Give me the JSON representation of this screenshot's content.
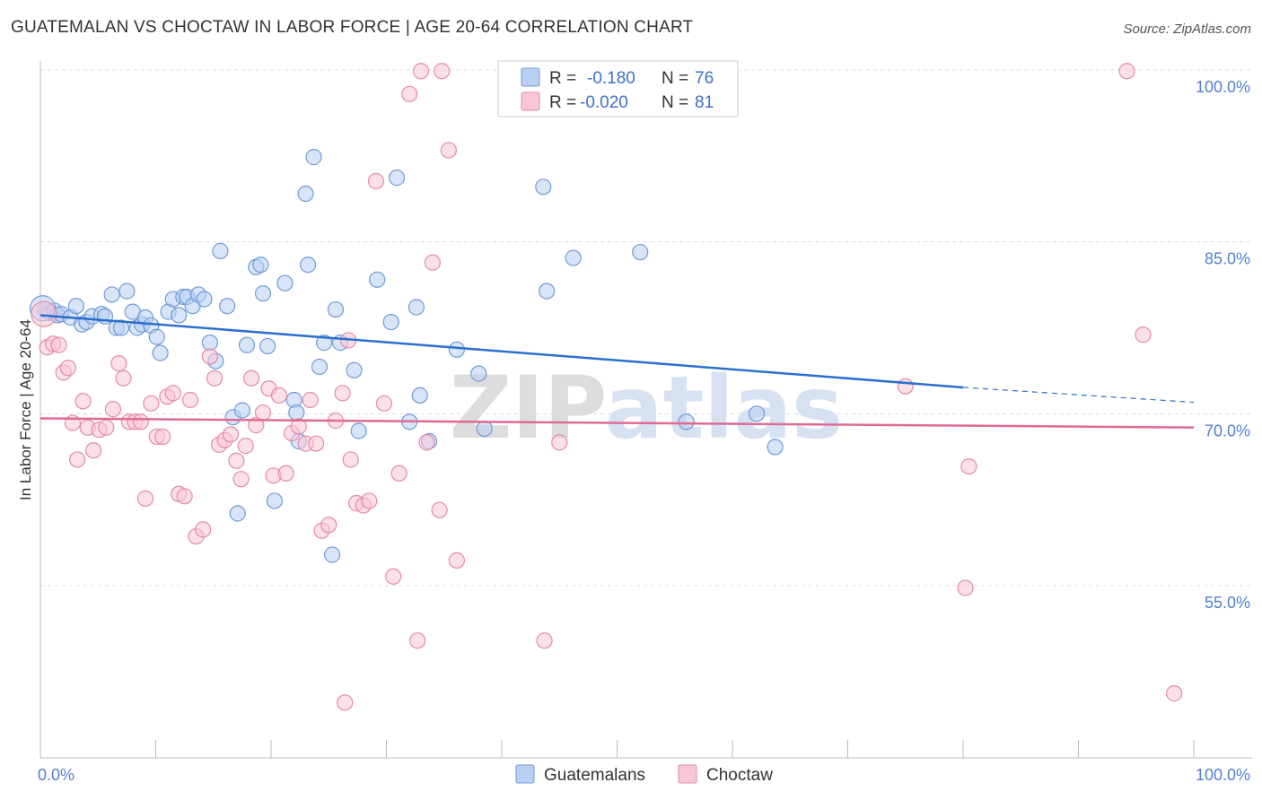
{
  "title": "GUATEMALAN VS CHOCTAW IN LABOR FORCE | AGE 20-64 CORRELATION CHART",
  "source": "Source: ZipAtlas.com",
  "watermark": "ZIPatlas",
  "chart_data": {
    "type": "scatter",
    "xlabel": "",
    "ylabel": "In Labor Force | Age 20-64",
    "xlim": [
      0,
      100
    ],
    "ylim": [
      40,
      102
    ],
    "x_tick_labels": [
      "0.0%",
      "100.0%"
    ],
    "y_ticks": [
      55,
      70,
      85,
      100
    ],
    "y_tick_labels": [
      "55.0%",
      "70.0%",
      "85.0%",
      "100.0%"
    ],
    "grid": "horizontal-dashed",
    "legend_position": "top-center",
    "stats": [
      {
        "r_label": "R =",
        "r_value": "-0.180",
        "n_label": "N =",
        "n_value": "76"
      },
      {
        "r_label": "R =",
        "r_value": "-0.020",
        "n_label": "N =",
        "n_value": "81"
      }
    ],
    "bottom_legend": [
      "Guatemalans",
      "Choctaw"
    ],
    "colors": {
      "guatemalan_fill": "#b8d0f2",
      "guatemalan_stroke": "#6f9ad8",
      "guatemalan_line": "#2a6fcf",
      "choctaw_fill": "#f9c6d6",
      "choctaw_stroke": "#e48aa8",
      "choctaw_line": "#e06a93"
    },
    "series": [
      {
        "name": "Guatemalans",
        "trend": {
          "x": [
            0,
            80
          ],
          "y": [
            78.6,
            72.3
          ],
          "dash_to": [
            100,
            71.0
          ]
        },
        "points": [
          [
            0.4,
            79.1
          ],
          [
            0.8,
            78.8
          ],
          [
            1.2,
            79.0
          ],
          [
            1.5,
            78.6
          ],
          [
            1.8,
            78.7
          ],
          [
            2.6,
            78.4
          ],
          [
            3.1,
            79.4
          ],
          [
            3.6,
            77.8
          ],
          [
            4.0,
            78.0
          ],
          [
            4.5,
            78.5
          ],
          [
            5.3,
            78.7
          ],
          [
            5.6,
            78.5
          ],
          [
            6.2,
            80.4
          ],
          [
            6.6,
            77.5
          ],
          [
            7.0,
            77.5
          ],
          [
            7.5,
            80.7
          ],
          [
            8.0,
            78.9
          ],
          [
            8.4,
            77.5
          ],
          [
            8.8,
            77.8
          ],
          [
            9.1,
            78.4
          ],
          [
            9.6,
            77.7
          ],
          [
            10.1,
            76.7
          ],
          [
            10.4,
            75.3
          ],
          [
            11.1,
            78.9
          ],
          [
            11.5,
            80.0
          ],
          [
            12.0,
            78.6
          ],
          [
            12.4,
            80.2
          ],
          [
            12.7,
            80.2
          ],
          [
            13.2,
            79.4
          ],
          [
            13.7,
            80.4
          ],
          [
            14.2,
            80.0
          ],
          [
            14.7,
            76.2
          ],
          [
            15.2,
            74.6
          ],
          [
            15.6,
            84.2
          ],
          [
            16.2,
            79.4
          ],
          [
            16.7,
            69.7
          ],
          [
            17.1,
            61.3
          ],
          [
            17.5,
            70.3
          ],
          [
            17.9,
            76.0
          ],
          [
            18.7,
            82.8
          ],
          [
            19.1,
            83.0
          ],
          [
            19.3,
            80.5
          ],
          [
            19.7,
            75.9
          ],
          [
            20.3,
            62.4
          ],
          [
            21.2,
            81.4
          ],
          [
            22.0,
            71.2
          ],
          [
            22.2,
            70.1
          ],
          [
            22.4,
            67.6
          ],
          [
            23.0,
            89.2
          ],
          [
            23.2,
            83.0
          ],
          [
            23.7,
            92.4
          ],
          [
            24.2,
            74.1
          ],
          [
            24.6,
            76.2
          ],
          [
            25.3,
            57.7
          ],
          [
            25.6,
            79.1
          ],
          [
            26.0,
            76.2
          ],
          [
            27.2,
            73.8
          ],
          [
            27.6,
            68.5
          ],
          [
            29.2,
            81.7
          ],
          [
            30.4,
            78.0
          ],
          [
            30.9,
            90.6
          ],
          [
            32.0,
            69.3
          ],
          [
            32.6,
            79.3
          ],
          [
            32.9,
            71.6
          ],
          [
            33.7,
            67.6
          ],
          [
            36.1,
            75.6
          ],
          [
            38.0,
            73.5
          ],
          [
            38.5,
            68.7
          ],
          [
            43.6,
            89.8
          ],
          [
            43.9,
            80.7
          ],
          [
            46.2,
            83.6
          ],
          [
            52.0,
            84.1
          ],
          [
            56.0,
            69.3
          ],
          [
            62.1,
            70.0
          ],
          [
            63.7,
            67.1
          ],
          [
            0.2,
            79.2
          ]
        ]
      },
      {
        "name": "Choctaw",
        "trend": {
          "x": [
            0,
            100
          ],
          "y": [
            69.6,
            68.8
          ]
        },
        "points": [
          [
            0.3,
            78.7
          ],
          [
            0.6,
            75.8
          ],
          [
            1.1,
            76.1
          ],
          [
            1.6,
            76.0
          ],
          [
            2.0,
            73.6
          ],
          [
            2.4,
            74.0
          ],
          [
            2.8,
            69.2
          ],
          [
            3.2,
            66.0
          ],
          [
            3.7,
            71.1
          ],
          [
            4.1,
            68.8
          ],
          [
            4.6,
            66.8
          ],
          [
            5.1,
            68.6
          ],
          [
            5.7,
            68.8
          ],
          [
            6.3,
            70.4
          ],
          [
            6.8,
            74.4
          ],
          [
            7.2,
            73.1
          ],
          [
            7.7,
            69.3
          ],
          [
            8.2,
            69.3
          ],
          [
            8.7,
            69.3
          ],
          [
            9.1,
            62.6
          ],
          [
            9.6,
            70.9
          ],
          [
            10.1,
            68.0
          ],
          [
            10.6,
            68.0
          ],
          [
            11.0,
            71.5
          ],
          [
            11.5,
            71.8
          ],
          [
            12.0,
            63.0
          ],
          [
            12.5,
            62.8
          ],
          [
            13.0,
            71.2
          ],
          [
            13.5,
            59.3
          ],
          [
            14.1,
            59.9
          ],
          [
            14.7,
            75.0
          ],
          [
            15.1,
            73.1
          ],
          [
            15.5,
            67.3
          ],
          [
            16.0,
            67.7
          ],
          [
            16.5,
            68.2
          ],
          [
            17.0,
            65.9
          ],
          [
            17.4,
            64.3
          ],
          [
            17.8,
            67.2
          ],
          [
            18.3,
            73.1
          ],
          [
            18.7,
            69.0
          ],
          [
            19.3,
            70.1
          ],
          [
            19.8,
            72.2
          ],
          [
            20.2,
            64.6
          ],
          [
            20.7,
            71.6
          ],
          [
            21.3,
            64.8
          ],
          [
            21.8,
            68.3
          ],
          [
            22.4,
            68.9
          ],
          [
            23.0,
            67.4
          ],
          [
            23.4,
            71.2
          ],
          [
            23.9,
            67.4
          ],
          [
            24.4,
            59.8
          ],
          [
            25.0,
            60.3
          ],
          [
            25.6,
            69.4
          ],
          [
            26.2,
            71.8
          ],
          [
            26.7,
            76.4
          ],
          [
            26.9,
            66.0
          ],
          [
            27.4,
            62.2
          ],
          [
            28.0,
            62.0
          ],
          [
            28.5,
            62.4
          ],
          [
            29.1,
            90.3
          ],
          [
            29.8,
            70.9
          ],
          [
            30.6,
            55.8
          ],
          [
            31.1,
            64.8
          ],
          [
            32.0,
            97.9
          ],
          [
            32.7,
            50.2
          ],
          [
            33.0,
            99.9
          ],
          [
            33.5,
            67.5
          ],
          [
            34.0,
            83.2
          ],
          [
            34.6,
            61.6
          ],
          [
            35.4,
            93.0
          ],
          [
            36.1,
            57.2
          ],
          [
            34.8,
            99.9
          ],
          [
            43.7,
            50.2
          ],
          [
            45.0,
            67.5
          ],
          [
            26.4,
            44.8
          ],
          [
            75.0,
            72.4
          ],
          [
            80.2,
            54.8
          ],
          [
            80.5,
            65.4
          ],
          [
            95.6,
            76.9
          ],
          [
            94.2,
            99.9
          ],
          [
            98.3,
            45.6
          ]
        ]
      }
    ]
  }
}
